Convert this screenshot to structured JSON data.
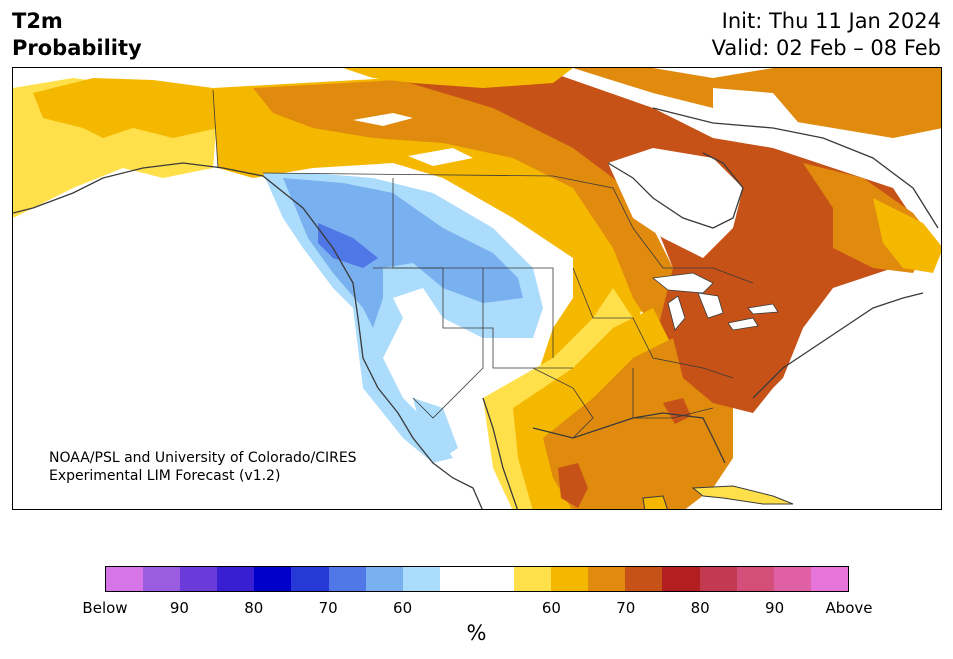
{
  "header": {
    "variable": "T2m",
    "subtitle": "Probability",
    "init": "Init: Thu 11 Jan 2024",
    "valid": "Valid: 02 Feb – 08 Feb"
  },
  "map": {
    "credit_line1": "NOAA/PSL and University of Colorado/CIRES",
    "credit_line2": "Experimental LIM Forecast (v1.2)"
  },
  "legend": {
    "unit": "%",
    "colors": [
      "#d575e8",
      "#9b5de0",
      "#6a3bd8",
      "#3a1fd2",
      "#0000c8",
      "#2639d6",
      "#4f78e6",
      "#79b0ef",
      "#acdcfb",
      "#ffffff",
      "#ffffff",
      "#ffe04a",
      "#f5b800",
      "#e08a0e",
      "#c65218",
      "#b31f20",
      "#c23a50",
      "#d44e7a",
      "#df60a5",
      "#e575d8"
    ],
    "tick_labels": [
      "Below",
      "90",
      "80",
      "70",
      "60",
      "60",
      "70",
      "80",
      "90",
      "Above"
    ]
  }
}
